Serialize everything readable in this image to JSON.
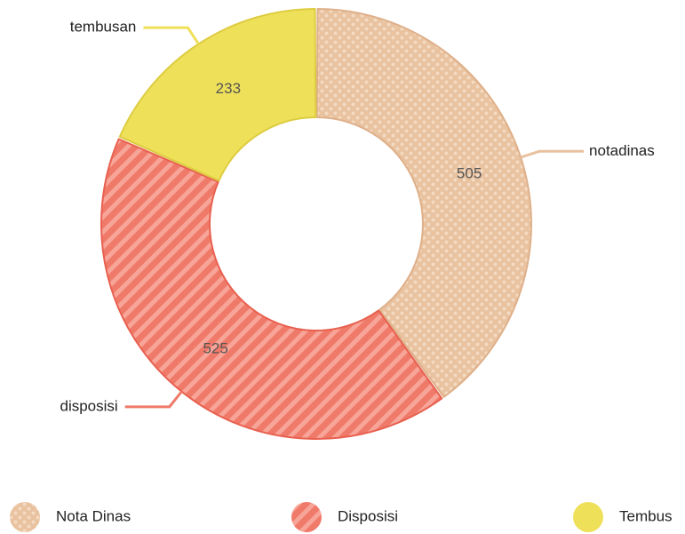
{
  "chart_data": {
    "type": "donut",
    "values": [
      505,
      525,
      233
    ],
    "labels": [
      "notadinas",
      "disposisi",
      "tembusan"
    ],
    "legend": [
      "Nota Dinas",
      "Disposisi",
      "Tembus"
    ],
    "colors": [
      "#e9c29f",
      "#f07a6a",
      "#efe05a"
    ],
    "patterns": [
      "dots",
      "stripes",
      "none"
    ]
  }
}
